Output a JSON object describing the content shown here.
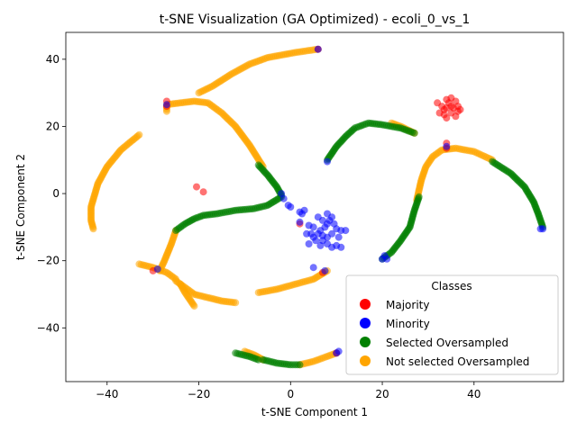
{
  "chart_data": {
    "type": "scatter",
    "title": "t-SNE Visualization (GA Optimized) - ecoli_0_vs_1",
    "xlabel": "t-SNE Component 1",
    "ylabel": "t-SNE Component 2",
    "xlim": [
      -49,
      59.5
    ],
    "ylim": [
      -56,
      48
    ],
    "x_ticks": [
      -40,
      -20,
      0,
      20,
      40
    ],
    "y_ticks": [
      -40,
      -20,
      0,
      20,
      40
    ],
    "grid": false,
    "legend": {
      "title": "Classes",
      "placement": "lower-right",
      "entries": [
        "Majority",
        "Minority",
        "Selected Oversampled",
        "Not selected Oversampled"
      ]
    },
    "colors": {
      "Majority": "#ff0000",
      "Minority": "#0000ff",
      "Selected Oversampled": "#008000",
      "Not selected Oversampled": "#ffa500"
    },
    "series": [
      {
        "name": "Not selected Oversampled",
        "color": "#ffa500",
        "curves": [
          [
            [
              6,
              43
            ],
            [
              1,
              42
            ],
            [
              -5,
              40.5
            ],
            [
              -9,
              38.5
            ],
            [
              -13,
              35.5
            ],
            [
              -17,
              32
            ],
            [
              -20,
              30
            ]
          ],
          [
            [
              -27,
              24.5
            ],
            [
              -27,
              26.5
            ],
            [
              -24,
              27
            ],
            [
              -21,
              27.5
            ],
            [
              -18,
              27
            ],
            [
              -15,
              24
            ],
            [
              -12,
              20
            ],
            [
              -9,
              14.5
            ],
            [
              -6,
              8
            ]
          ],
          [
            [
              -33,
              17.5
            ],
            [
              -37,
              13
            ],
            [
              -40,
              8
            ],
            [
              -42,
              3
            ],
            [
              -43.5,
              -4
            ],
            [
              -43.5,
              -8
            ],
            [
              -43,
              -10.5
            ]
          ],
          [
            [
              -33,
              -21
            ],
            [
              -30,
              -22
            ],
            [
              -27,
              -23.5
            ],
            [
              -25,
              -25.5
            ]
          ],
          [
            [
              -25,
              -11
            ],
            [
              -26,
              -15
            ],
            [
              -27.5,
              -20
            ],
            [
              -28.5,
              -23
            ]
          ],
          [
            [
              -25,
              -26
            ],
            [
              -23,
              -28
            ],
            [
              -21,
              -30
            ],
            [
              -18,
              -31
            ],
            [
              -15,
              -32
            ],
            [
              -12,
              -32.5
            ]
          ],
          [
            [
              -24,
              -27
            ],
            [
              -23,
              -29.5
            ],
            [
              -22,
              -31.5
            ],
            [
              -21,
              -33.5
            ]
          ],
          [
            [
              -7,
              -29.5
            ],
            [
              -3,
              -28.5
            ],
            [
              1,
              -27
            ],
            [
              5,
              -25.5
            ],
            [
              8,
              -23
            ]
          ],
          [
            [
              -10,
              -47
            ],
            [
              -8,
              -48
            ],
            [
              -6,
              -49.5
            ]
          ],
          [
            [
              2,
              -51
            ],
            [
              5,
              -50
            ],
            [
              8,
              -48.5
            ],
            [
              10,
              -47.5
            ]
          ],
          [
            [
              27.5,
              -2
            ],
            [
              28,
              1
            ],
            [
              28.5,
              4
            ],
            [
              29.5,
              8
            ],
            [
              31,
              11
            ],
            [
              33,
              13
            ],
            [
              36,
              13.5
            ],
            [
              40,
              12.5
            ],
            [
              44,
              10
            ]
          ],
          [
            [
              27,
              18
            ],
            [
              24,
              20
            ],
            [
              22,
              21
            ]
          ]
        ]
      },
      {
        "name": "Selected Oversampled",
        "color": "#008000",
        "curves": [
          [
            [
              -7,
              8.5
            ],
            [
              -5,
              5.5
            ],
            [
              -3,
              2
            ],
            [
              -2,
              -0.5
            ]
          ],
          [
            [
              -25,
              -11
            ],
            [
              -23,
              -9
            ],
            [
              -21,
              -7.5
            ],
            [
              -19,
              -6.5
            ],
            [
              -16,
              -6
            ],
            [
              -12,
              -5
            ],
            [
              -8,
              -4.5
            ],
            [
              -5,
              -3.5
            ],
            [
              -2,
              -1
            ]
          ],
          [
            [
              8,
              10
            ],
            [
              10,
              14
            ],
            [
              12,
              17
            ],
            [
              14,
              19.5
            ],
            [
              17,
              21
            ],
            [
              20,
              20.5
            ],
            [
              24,
              19.5
            ],
            [
              27,
              18
            ]
          ],
          [
            [
              28,
              -1
            ],
            [
              27,
              -5
            ],
            [
              26,
              -10
            ],
            [
              24,
              -14
            ],
            [
              22,
              -17.5
            ],
            [
              20,
              -19.5
            ]
          ],
          [
            [
              44,
              9.5
            ],
            [
              48,
              6
            ],
            [
              51,
              2
            ],
            [
              53,
              -2.5
            ],
            [
              54,
              -6
            ],
            [
              55,
              -10
            ]
          ],
          [
            [
              -6,
              -49.5
            ],
            [
              -3,
              -50.5
            ],
            [
              0,
              -51
            ],
            [
              2,
              -51
            ]
          ],
          [
            [
              -12,
              -47.5
            ],
            [
              -9,
              -48.5
            ],
            [
              -7,
              -49.5
            ]
          ]
        ]
      },
      {
        "name": "Majority",
        "color": "#ff0000",
        "points": [
          [
            -20.5,
            2
          ],
          [
            -19,
            0.5
          ],
          [
            -30,
            -23
          ],
          [
            -27,
            27.5
          ],
          [
            -27,
            26
          ],
          [
            2,
            -9
          ],
          [
            6,
            43
          ],
          [
            7,
            -23.5
          ],
          [
            10,
            -47.5
          ],
          [
            34,
            15
          ],
          [
            34,
            13.5
          ],
          [
            32,
            27
          ],
          [
            32.5,
            24
          ],
          [
            33,
            26
          ],
          [
            33.5,
            25
          ],
          [
            34,
            28
          ],
          [
            34,
            22.5
          ],
          [
            34.5,
            27
          ],
          [
            35,
            26
          ],
          [
            35,
            24
          ],
          [
            35.5,
            25.5
          ],
          [
            36,
            27.5
          ],
          [
            36.5,
            26
          ],
          [
            36.5,
            24.5
          ],
          [
            37,
            25
          ],
          [
            35,
            28.5
          ],
          [
            34,
            25.5
          ],
          [
            33.5,
            23.5
          ],
          [
            36,
            23
          ]
        ]
      },
      {
        "name": "Minority",
        "color": "#0000ff",
        "points": [
          [
            -27,
            26.5
          ],
          [
            -29,
            -22.5
          ],
          [
            -2,
            0
          ],
          [
            -1.5,
            -1.5
          ],
          [
            -0.5,
            -3.5
          ],
          [
            0,
            -4
          ],
          [
            2,
            -8.5
          ],
          [
            2,
            -5.5
          ],
          [
            3,
            -5
          ],
          [
            2.5,
            -6
          ],
          [
            4,
            -9.5
          ],
          [
            5,
            -10
          ],
          [
            4.5,
            -12
          ],
          [
            5,
            -13
          ],
          [
            5.5,
            -14
          ],
          [
            6,
            -12
          ],
          [
            6.5,
            -11
          ],
          [
            6,
            -7
          ],
          [
            7,
            -8
          ],
          [
            7.5,
            -10
          ],
          [
            8,
            -6
          ],
          [
            8.5,
            -8
          ],
          [
            8,
            -9
          ],
          [
            9,
            -7
          ],
          [
            9.5,
            -9
          ],
          [
            10,
            -10.5
          ],
          [
            11,
            -11
          ],
          [
            10.5,
            -13
          ],
          [
            9,
            -12
          ],
          [
            8,
            -13
          ],
          [
            7,
            -14
          ],
          [
            6.5,
            -15.5
          ],
          [
            8,
            -15
          ],
          [
            9,
            -16
          ],
          [
            10,
            -15.5
          ],
          [
            11,
            -16
          ],
          [
            12,
            -11
          ],
          [
            3.5,
            -12
          ],
          [
            4,
            -15
          ],
          [
            7,
            -12.5
          ],
          [
            5,
            -22
          ],
          [
            7.5,
            -23
          ],
          [
            6,
            43
          ],
          [
            8,
            9.5
          ],
          [
            10.5,
            -47
          ],
          [
            10,
            -47.5
          ],
          [
            20,
            -19.5
          ],
          [
            20.5,
            -18.5
          ],
          [
            21,
            -19.5
          ],
          [
            34,
            14
          ],
          [
            54.5,
            -10.5
          ],
          [
            55,
            -10.5
          ]
        ]
      }
    ]
  }
}
